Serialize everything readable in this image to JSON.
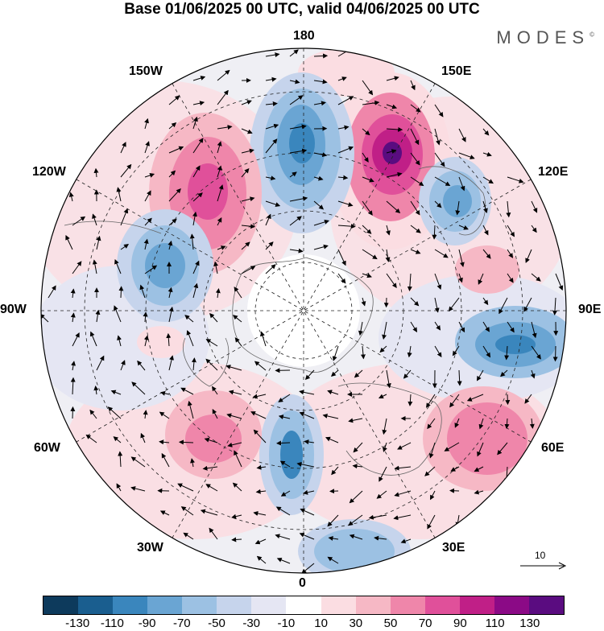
{
  "title": "Base 01/06/2025 00 UTC, valid 04/06/2025 00 UTC",
  "brand": "MODES",
  "brand_mark": "©",
  "longitude_labels": {
    "n180": "180",
    "e150": "150E",
    "w150": "150W",
    "e120": "120E",
    "w120": "120W",
    "e90": "90E",
    "w90": "90W",
    "e60": "60E",
    "w60": "60W",
    "e30": "30E",
    "w30": "30W",
    "zero": "0"
  },
  "vector_reference": "10",
  "colorbar": {
    "colors": [
      "#0d3a5c",
      "#1a5e8f",
      "#3a86bd",
      "#6aa5d3",
      "#9cc1e3",
      "#c6d4ec",
      "#e5e6f3",
      "#ffffff",
      "#fbdde2",
      "#f6b8c5",
      "#ef86aa",
      "#e0509a",
      "#c01f87",
      "#8b0a86",
      "#5a0c80"
    ],
    "tick_labels": [
      "-130",
      "-110",
      "-90",
      "-70",
      "-50",
      "-30",
      "-10",
      "10",
      "30",
      "50",
      "70",
      "90",
      "110",
      "130"
    ]
  },
  "anomaly_centers": [
    {
      "name": "pos-150e",
      "color": "#ef86aa",
      "core": "#8b0a86"
    },
    {
      "name": "neg-180",
      "color": "#9cc1e3",
      "core": "#3a86bd"
    },
    {
      "name": "pos-140w",
      "color": "#f6b8c5",
      "core": "#e0509a"
    },
    {
      "name": "neg-120e",
      "color": "#9cc1e3",
      "core": "#3a86bd"
    },
    {
      "name": "neg-110w",
      "color": "#9cc1e3",
      "core": "#6aa5d3"
    },
    {
      "name": "neg-90e",
      "color": "#9cc1e3",
      "core": "#3a86bd"
    },
    {
      "name": "pos-60e",
      "color": "#f6b8c5",
      "core": "#ef86aa"
    },
    {
      "name": "neg-0",
      "color": "#9cc1e3",
      "core": "#3a86bd"
    },
    {
      "name": "neg-30e",
      "color": "#9cc1e3",
      "core": "#6aa5d3"
    },
    {
      "name": "pos-45w",
      "color": "#f6b8c5",
      "core": "#ef86aa"
    }
  ]
}
